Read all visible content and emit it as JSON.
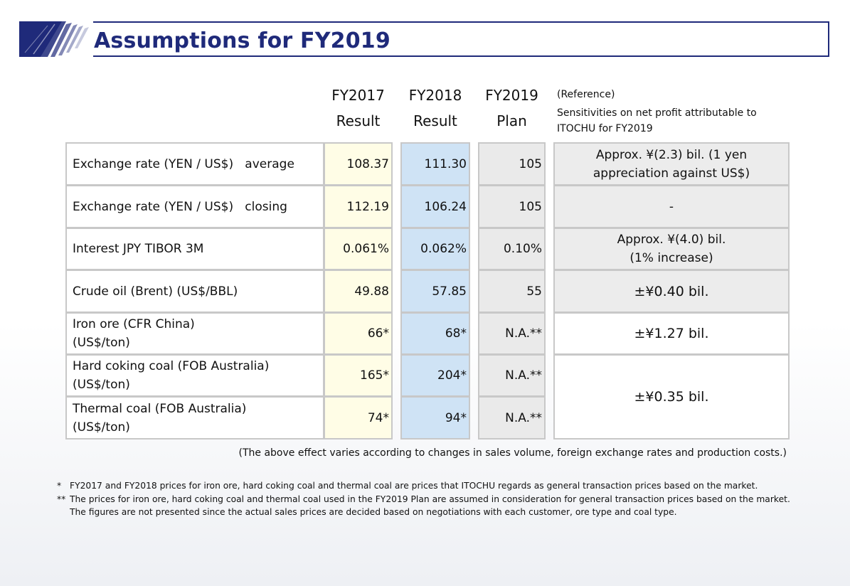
{
  "title": "Assumptions for FY2019",
  "columns": {
    "fy2017": {
      "line1": "FY2017",
      "line2": "Result"
    },
    "fy2018": {
      "line1": "FY2018",
      "line2": "Result"
    },
    "fy2019": {
      "line1": "FY2019",
      "line2": "Plan"
    },
    "reference": {
      "line1": "(Reference)",
      "line2": "Sensitivities on net profit attributable to ITOCHU for FY2019"
    }
  },
  "rows": [
    {
      "label": "Exchange rate (YEN / US$)   average",
      "fy2017": "108.37",
      "fy2018": "111.30",
      "fy2019": "105",
      "sensitivity": "Approx. ¥(2.3) bil. (1 yen appreciation against US$)"
    },
    {
      "label": "Exchange rate (YEN / US$)   closing",
      "fy2017": "112.19",
      "fy2018": "106.24",
      "fy2019": "105",
      "sensitivity": "-"
    },
    {
      "label": "Interest JPY TIBOR 3M",
      "fy2017": "0.061%",
      "fy2018": "0.062%",
      "fy2019": "0.10%",
      "sensitivity_line1": "Approx. ¥(4.0) bil.",
      "sensitivity_line2": "(1% increase)"
    },
    {
      "label": "Crude oil (Brent) (US$/BBL)",
      "fy2017": "49.88",
      "fy2018": "57.85",
      "fy2019": "55",
      "sensitivity": "±¥0.40 bil."
    },
    {
      "label_line1": "Iron ore (CFR China)",
      "label_line2": "(US$/ton)",
      "fy2017": "66*",
      "fy2018": "68*",
      "fy2019": "N.A.**",
      "sensitivity": "±¥1.27 bil."
    },
    {
      "label_line1": "Hard coking coal (FOB Australia)",
      "label_line2": "(US$/ton)",
      "fy2017": "165*",
      "fy2018": "204*",
      "fy2019": "N.A.**"
    },
    {
      "label_line1": "Thermal coal (FOB Australia)",
      "label_line2": "(US$/ton)",
      "fy2017": "74*",
      "fy2018": "94*",
      "fy2019": "N.A.**"
    }
  ],
  "coal_sensitivity": "±¥0.35 bil.",
  "effect_note": "(The above effect varies according to changes in sales volume, foreign exchange rates and production costs.)",
  "footnotes": [
    {
      "mark": "*",
      "text": "FY2017 and FY2018 prices for iron ore, hard coking coal and thermal coal are prices that ITOCHU regards as general transaction prices based on the market."
    },
    {
      "mark": "**",
      "text": "The prices for iron ore, hard coking coal and thermal coal used in the FY2019 Plan are assumed in consideration for general transaction prices based on the market."
    },
    {
      "mark": "",
      "text": "The figures are not presented since the actual sales prices are decided based on negotiations with each customer, ore type and coal type."
    }
  ],
  "colors": {
    "title": "#1f2a7a",
    "fy2017_bg": "#fffde6",
    "fy2018_bg": "#cfe3f5",
    "fy2019_bg": "#eaeaea"
  }
}
